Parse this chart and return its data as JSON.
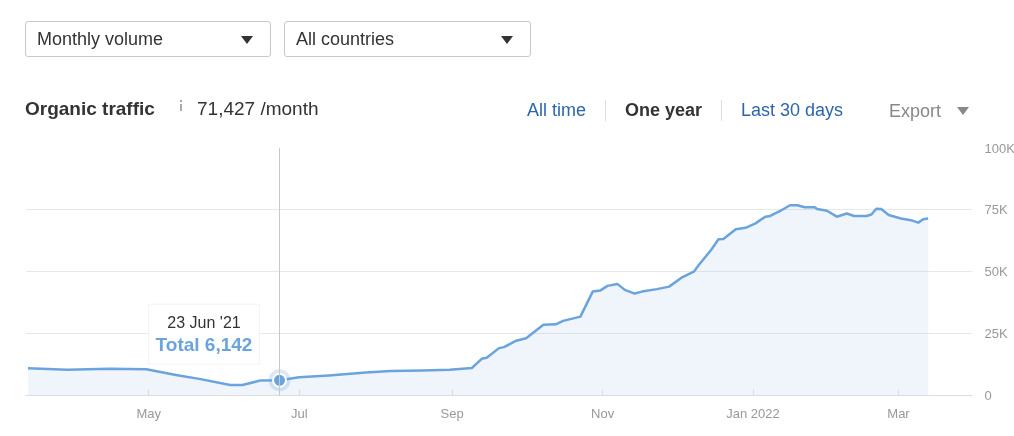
{
  "chart_data": {
    "type": "area",
    "title": "Organic traffic",
    "subtitle": "71,427 /month",
    "x": [
      "2021-03-13",
      "2021-03-29",
      "2021-04-15",
      "2021-04-30",
      "2021-05-12",
      "2021-05-22",
      "2021-06-03",
      "2021-06-08",
      "2021-06-15",
      "2021-06-23",
      "2021-07-01",
      "2021-07-13",
      "2021-07-28",
      "2021-08-07",
      "2021-08-20",
      "2021-08-31",
      "2021-09-09",
      "2021-09-13",
      "2021-09-15",
      "2021-09-20",
      "2021-09-22",
      "2021-09-27",
      "2021-10-01",
      "2021-10-08",
      "2021-10-13",
      "2021-10-16",
      "2021-10-23",
      "2021-10-28",
      "2021-10-31",
      "2021-11-03",
      "2021-11-07",
      "2021-11-10",
      "2021-11-14",
      "2021-11-17",
      "2021-11-23",
      "2021-11-28",
      "2021-12-03",
      "2021-12-08",
      "2021-12-10",
      "2021-12-15",
      "2021-12-18",
      "2021-12-20",
      "2021-12-25",
      "2021-12-29",
      "2022-01-02",
      "2022-01-06",
      "2022-01-08",
      "2022-01-12",
      "2022-01-16",
      "2022-01-19",
      "2022-01-22",
      "2022-01-26",
      "2022-01-27",
      "2022-01-31",
      "2022-02-04",
      "2022-02-08",
      "2022-02-11",
      "2022-02-16",
      "2022-02-18",
      "2022-02-20",
      "2022-02-22",
      "2022-02-25",
      "2022-03-02",
      "2022-03-06",
      "2022-03-09",
      "2022-03-11",
      "2022-03-13"
    ],
    "values": [
      11000,
      10400,
      10800,
      10600,
      8300,
      6600,
      4200,
      4200,
      6000,
      6142,
      7400,
      8100,
      9300,
      9900,
      10100,
      10400,
      11100,
      14800,
      15200,
      19100,
      19500,
      22100,
      23100,
      28500,
      28700,
      30100,
      31800,
      41900,
      42300,
      44200,
      45000,
      42600,
      41100,
      41900,
      42900,
      43900,
      47500,
      49900,
      52600,
      58700,
      63000,
      63100,
      67000,
      67600,
      69400,
      72100,
      72400,
      74400,
      76700,
      76700,
      75900,
      75900,
      75200,
      74500,
      72100,
      73400,
      72400,
      72400,
      73000,
      75300,
      75200,
      72800,
      71400,
      70700,
      69700,
      71100,
      71400
    ],
    "color": "#6ba4dc",
    "xlim": [
      "2021-03-12",
      "2022-03-31"
    ],
    "xticks": [
      {
        "value": "2021-05-01",
        "label": "May"
      },
      {
        "value": "2021-07-01",
        "label": "Jul"
      },
      {
        "value": "2021-09-01",
        "label": "Sep"
      },
      {
        "value": "2021-11-01",
        "label": "Nov"
      },
      {
        "value": "2022-01-01",
        "label": "Jan 2022"
      },
      {
        "value": "2022-03-01",
        "label": "Mar"
      }
    ],
    "ylim": [
      0,
      100000
    ],
    "yticks": [
      0,
      {
        "value": 25000,
        "label": "25K"
      },
      {
        "value": 50000,
        "label": "50K"
      },
      {
        "value": 75000,
        "label": "75K"
      },
      {
        "value": 100000,
        "label": "100K"
      }
    ],
    "grid": "y",
    "ref_lines": [
      {
        "axis": "x",
        "value": "2021-06-23",
        "color": "#c8c8c8"
      }
    ],
    "annotations": [
      "Monthly volume",
      "All countries",
      "All time",
      "One year",
      "Last 30 days",
      "Export",
      "23 Jun '21",
      {
        "text": "Total 6,142",
        "x": "2021-06-23",
        "y": 6142
      }
    ]
  }
}
